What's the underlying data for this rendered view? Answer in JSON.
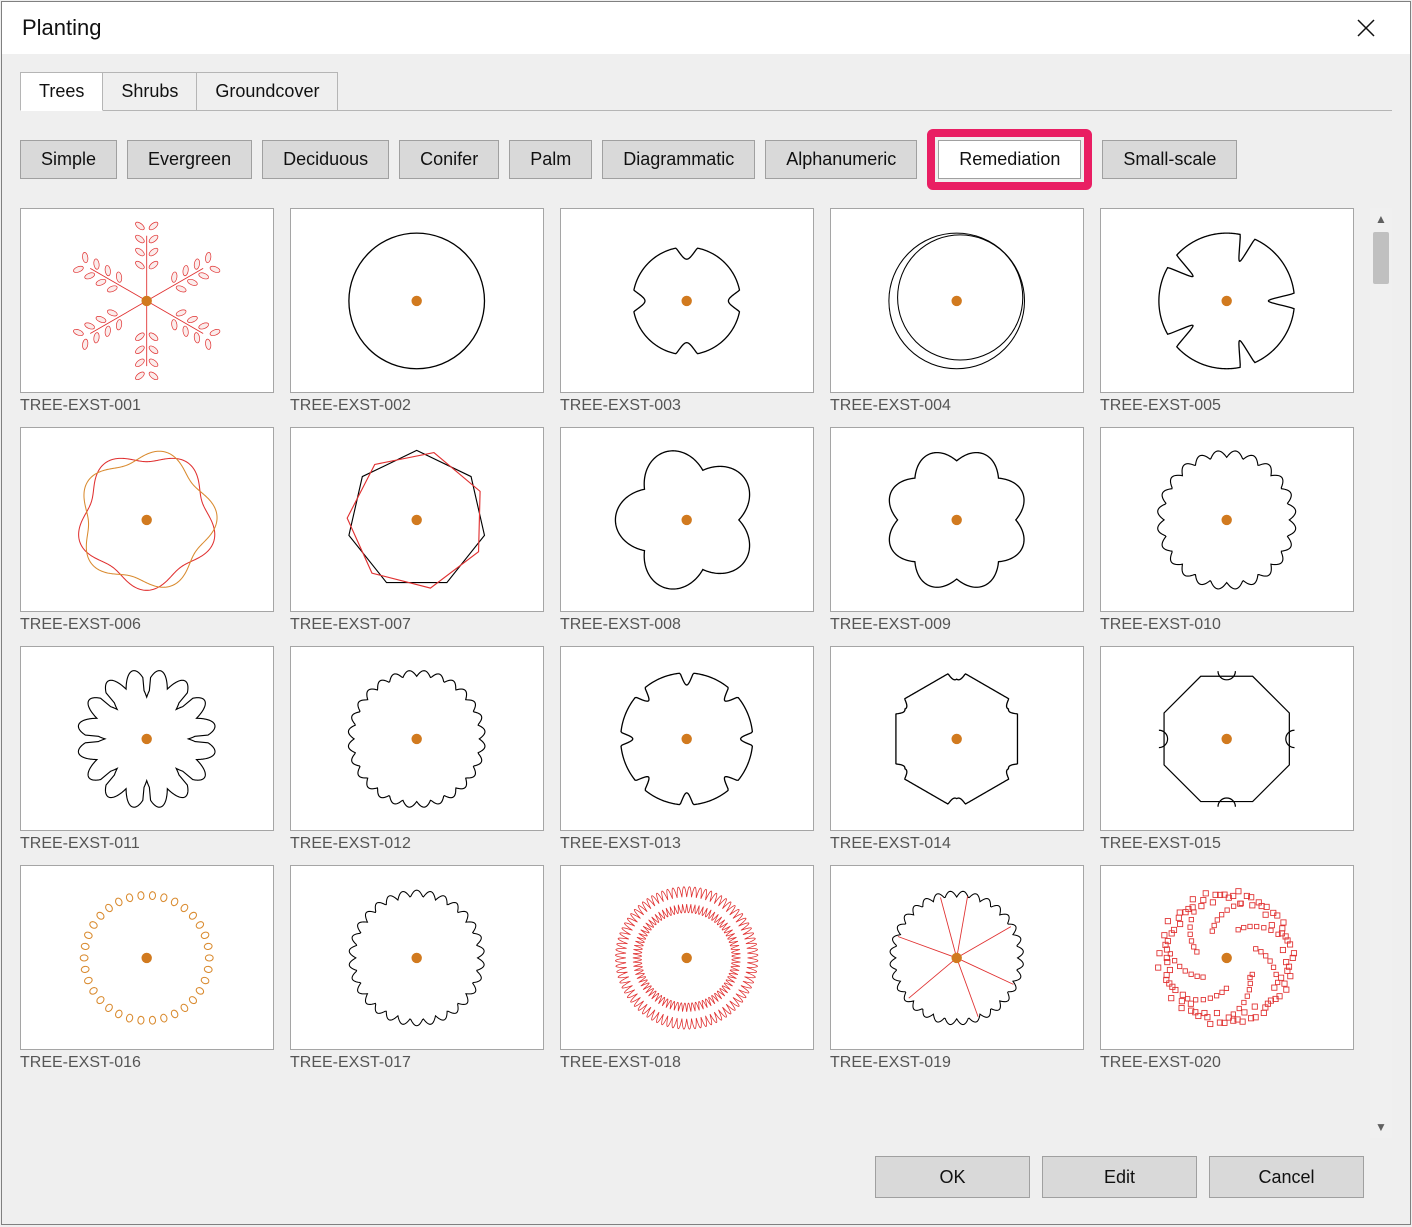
{
  "window": {
    "title": "Planting"
  },
  "main_tabs": [
    {
      "label": "Trees",
      "active": true
    },
    {
      "label": "Shrubs",
      "active": false
    },
    {
      "label": "Groundcover",
      "active": false
    }
  ],
  "sub_tabs": [
    {
      "label": "Simple",
      "active": false,
      "highlighted": false
    },
    {
      "label": "Evergreen",
      "active": false,
      "highlighted": false
    },
    {
      "label": "Deciduous",
      "active": false,
      "highlighted": false
    },
    {
      "label": "Conifer",
      "active": false,
      "highlighted": false
    },
    {
      "label": "Palm",
      "active": false,
      "highlighted": false
    },
    {
      "label": "Diagrammatic",
      "active": false,
      "highlighted": false
    },
    {
      "label": "Alphanumeric",
      "active": false,
      "highlighted": false
    },
    {
      "label": "Remediation",
      "active": true,
      "highlighted": true
    },
    {
      "label": "Small-scale",
      "active": false,
      "highlighted": false
    }
  ],
  "items": [
    {
      "label": "TREE-EXST-001",
      "shape": "leafy-red"
    },
    {
      "label": "TREE-EXST-002",
      "shape": "plain-circle"
    },
    {
      "label": "TREE-EXST-003",
      "shape": "circle-4notch"
    },
    {
      "label": "TREE-EXST-004",
      "shape": "double-circle"
    },
    {
      "label": "TREE-EXST-005",
      "shape": "flower5-cut"
    },
    {
      "label": "TREE-EXST-006",
      "shape": "wavy-red-circle"
    },
    {
      "label": "TREE-EXST-007",
      "shape": "heptagon-red"
    },
    {
      "label": "TREE-EXST-008",
      "shape": "cloud5"
    },
    {
      "label": "TREE-EXST-009",
      "shape": "bumps8"
    },
    {
      "label": "TREE-EXST-010",
      "shape": "scallop-many"
    },
    {
      "label": "TREE-EXST-011",
      "shape": "ginkgo-like"
    },
    {
      "label": "TREE-EXST-012",
      "shape": "scallop-many2"
    },
    {
      "label": "TREE-EXST-013",
      "shape": "notched8"
    },
    {
      "label": "TREE-EXST-014",
      "shape": "hex-notch"
    },
    {
      "label": "TREE-EXST-015",
      "shape": "octagon-bumps"
    },
    {
      "label": "TREE-EXST-016",
      "shape": "dot-ring"
    },
    {
      "label": "TREE-EXST-017",
      "shape": "sawtooth-out"
    },
    {
      "label": "TREE-EXST-018",
      "shape": "spiky-red"
    },
    {
      "label": "TREE-EXST-019",
      "shape": "sawtooth-red-lines"
    },
    {
      "label": "TREE-EXST-020",
      "shape": "pixel-red"
    }
  ],
  "buttons": {
    "ok": "OK",
    "edit": "Edit",
    "cancel": "Cancel"
  },
  "colors": {
    "center_dot": "#d17a1f",
    "stroke_black": "#000000",
    "stroke_red": "#e03030",
    "stroke_orange": "#d98a2e",
    "highlight_border": "#e91e63",
    "panel_bg": "#efefef",
    "thumb_bg": "#ffffff",
    "thumb_border": "#a5a5a5",
    "button_bg": "#d9d9d9",
    "button_border": "#a0a0a0",
    "caption_color": "#555555"
  }
}
